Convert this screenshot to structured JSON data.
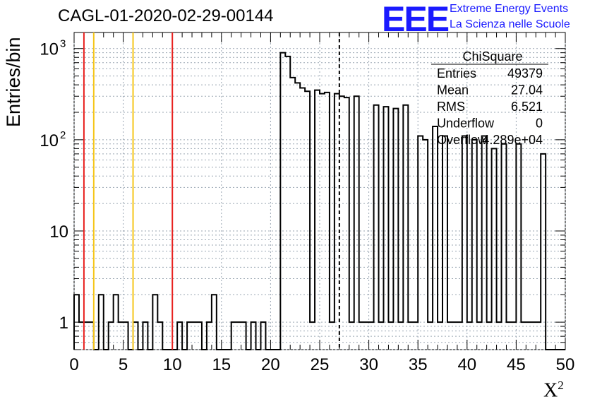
{
  "chart_data": {
    "type": "histogram",
    "title": "CAGL-01-2020-02-29-00144",
    "xlabel": "X",
    "xlabel_superscript": "2",
    "ylabel": "Entries/bin",
    "xlim": [
      0,
      50
    ],
    "ylim": [
      0.5,
      1500
    ],
    "y_scale": "log",
    "grid": true,
    "bin_width": 0.5,
    "x_ticks": [
      "0",
      "5",
      "10",
      "15",
      "20",
      "25",
      "30",
      "35",
      "40",
      "45",
      "50"
    ],
    "y_ticks": [
      {
        "value": 1,
        "label": "1"
      },
      {
        "value": 10,
        "label": "10"
      },
      {
        "value": 100,
        "label": "10",
        "sup": "2"
      },
      {
        "value": 1000,
        "label": "10",
        "sup": "3"
      }
    ],
    "bins": [
      {
        "x": 0.0,
        "value": 2
      },
      {
        "x": 0.5,
        "value": 1
      },
      {
        "x": 1.0,
        "value": 1
      },
      {
        "x": 1.5,
        "value": 1
      },
      {
        "x": 2.0,
        "value": 0
      },
      {
        "x": 2.5,
        "value": 2
      },
      {
        "x": 3.0,
        "value": 0
      },
      {
        "x": 3.5,
        "value": 1
      },
      {
        "x": 4.0,
        "value": 2
      },
      {
        "x": 4.5,
        "value": 1
      },
      {
        "x": 5.0,
        "value": 1
      },
      {
        "x": 5.5,
        "value": 0
      },
      {
        "x": 6.0,
        "value": 1
      },
      {
        "x": 6.5,
        "value": 0
      },
      {
        "x": 7.0,
        "value": 1
      },
      {
        "x": 7.5,
        "value": 0
      },
      {
        "x": 8.0,
        "value": 2
      },
      {
        "x": 8.5,
        "value": 1
      },
      {
        "x": 9.0,
        "value": 0
      },
      {
        "x": 9.5,
        "value": 0
      },
      {
        "x": 10.0,
        "value": 0
      },
      {
        "x": 10.5,
        "value": 1
      },
      {
        "x": 11.0,
        "value": 0
      },
      {
        "x": 11.5,
        "value": 1
      },
      {
        "x": 12.0,
        "value": 1
      },
      {
        "x": 12.5,
        "value": 1
      },
      {
        "x": 13.0,
        "value": 0
      },
      {
        "x": 13.5,
        "value": 1
      },
      {
        "x": 14.0,
        "value": 2
      },
      {
        "x": 14.5,
        "value": 0
      },
      {
        "x": 15.0,
        "value": 0
      },
      {
        "x": 15.5,
        "value": 0
      },
      {
        "x": 16.0,
        "value": 1
      },
      {
        "x": 16.5,
        "value": 1
      },
      {
        "x": 17.0,
        "value": 1
      },
      {
        "x": 17.5,
        "value": 0
      },
      {
        "x": 18.0,
        "value": 1
      },
      {
        "x": 18.5,
        "value": 0
      },
      {
        "x": 19.0,
        "value": 1
      },
      {
        "x": 19.5,
        "value": 0
      },
      {
        "x": 20.0,
        "value": 0
      },
      {
        "x": 20.5,
        "value": 0
      },
      {
        "x": 21.0,
        "value": 900
      },
      {
        "x": 21.5,
        "value": 820
      },
      {
        "x": 22.0,
        "value": 480
      },
      {
        "x": 22.5,
        "value": 420
      },
      {
        "x": 23.0,
        "value": 370
      },
      {
        "x": 23.5,
        "value": 340
      },
      {
        "x": 24.0,
        "value": 1
      },
      {
        "x": 24.5,
        "value": 350
      },
      {
        "x": 25.0,
        "value": 320
      },
      {
        "x": 25.5,
        "value": 330
      },
      {
        "x": 26.0,
        "value": 1
      },
      {
        "x": 26.5,
        "value": 320
      },
      {
        "x": 27.0,
        "value": 300
      },
      {
        "x": 27.5,
        "value": 290
      },
      {
        "x": 28.0,
        "value": 1
      },
      {
        "x": 28.5,
        "value": 300
      },
      {
        "x": 29.0,
        "value": 1
      },
      {
        "x": 29.5,
        "value": 1
      },
      {
        "x": 30.0,
        "value": 1
      },
      {
        "x": 30.5,
        "value": 240
      },
      {
        "x": 31.0,
        "value": 1
      },
      {
        "x": 31.5,
        "value": 230
      },
      {
        "x": 32.0,
        "value": 1
      },
      {
        "x": 32.5,
        "value": 220
      },
      {
        "x": 33.0,
        "value": 1
      },
      {
        "x": 33.5,
        "value": 240
      },
      {
        "x": 34.0,
        "value": 1
      },
      {
        "x": 34.5,
        "value": 1
      },
      {
        "x": 35.0,
        "value": 110
      },
      {
        "x": 35.5,
        "value": 100
      },
      {
        "x": 36.0,
        "value": 1
      },
      {
        "x": 36.5,
        "value": 140
      },
      {
        "x": 37.0,
        "value": 1
      },
      {
        "x": 37.5,
        "value": 110
      },
      {
        "x": 38.0,
        "value": 1
      },
      {
        "x": 38.5,
        "value": 1
      },
      {
        "x": 39.0,
        "value": 1
      },
      {
        "x": 39.5,
        "value": 110
      },
      {
        "x": 40.0,
        "value": 1
      },
      {
        "x": 40.5,
        "value": 100
      },
      {
        "x": 41.0,
        "value": 1
      },
      {
        "x": 41.5,
        "value": 110
      },
      {
        "x": 42.0,
        "value": 1
      },
      {
        "x": 42.5,
        "value": 80
      },
      {
        "x": 43.0,
        "value": 1
      },
      {
        "x": 43.5,
        "value": 90
      },
      {
        "x": 44.0,
        "value": 1
      },
      {
        "x": 44.5,
        "value": 1
      },
      {
        "x": 45.0,
        "value": 90
      },
      {
        "x": 45.5,
        "value": 1
      },
      {
        "x": 46.0,
        "value": 1
      },
      {
        "x": 46.5,
        "value": 1
      },
      {
        "x": 47.0,
        "value": 1
      },
      {
        "x": 47.5,
        "value": 70
      },
      {
        "x": 48.0,
        "value": 0
      },
      {
        "x": 48.5,
        "value": 0
      },
      {
        "x": 49.0,
        "value": 0
      },
      {
        "x": 49.5,
        "value": 0
      }
    ],
    "vertical_lines": [
      {
        "x": 1,
        "color": "#e8211f",
        "style": "solid"
      },
      {
        "x": 2,
        "color": "#f5c518",
        "style": "solid"
      },
      {
        "x": 6,
        "color": "#f5c518",
        "style": "solid"
      },
      {
        "x": 10,
        "color": "#e8211f",
        "style": "solid"
      },
      {
        "x": 27,
        "color": "#000000",
        "style": "dashed"
      }
    ],
    "stats_box": {
      "title": "ChiSquare",
      "rows": [
        {
          "label": "Entries",
          "value": "49379"
        },
        {
          "label": "Mean",
          "value": "27.04"
        },
        {
          "label": "RMS",
          "value": "6.521"
        },
        {
          "label": "Underflow",
          "value": "0"
        },
        {
          "label": "Overflow",
          "value": "4.289e+04"
        }
      ]
    }
  },
  "logo": {
    "mark": "EEE",
    "line1": "Extreme Energy Events",
    "line2": "La Scienza nelle Scuole",
    "color": "#1a1aff"
  }
}
